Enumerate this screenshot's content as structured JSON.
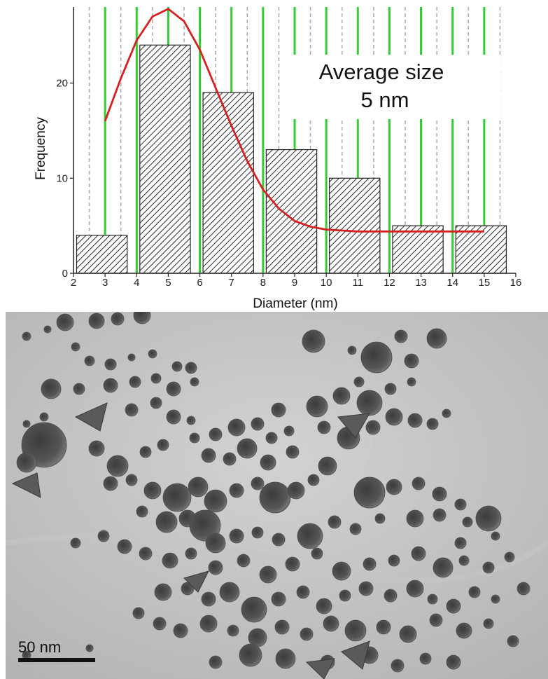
{
  "chart_data": {
    "type": "bar",
    "x_ticks": [
      2,
      3,
      4,
      5,
      6,
      7,
      8,
      9,
      10,
      11,
      12,
      13,
      14,
      15,
      16
    ],
    "y_ticks": [
      0,
      10,
      20
    ],
    "xlim": [
      2,
      16
    ],
    "ylim": [
      0,
      28
    ],
    "xlabel": "Diameter (nm)",
    "ylabel": "Frequency",
    "bars": [
      {
        "x_start": 2.1,
        "x_end": 3.7,
        "value": 4
      },
      {
        "x_start": 4.1,
        "x_end": 5.7,
        "value": 24
      },
      {
        "x_start": 6.1,
        "x_end": 7.7,
        "value": 19
      },
      {
        "x_start": 8.1,
        "x_end": 9.7,
        "value": 13
      },
      {
        "x_start": 10.1,
        "x_end": 11.7,
        "value": 10
      },
      {
        "x_start": 12.1,
        "x_end": 13.7,
        "value": 5
      },
      {
        "x_start": 14.1,
        "x_end": 15.7,
        "value": 5
      }
    ],
    "fit_curve": {
      "color": "#d42020",
      "x": [
        3,
        3.5,
        4,
        4.5,
        5,
        5.5,
        6,
        6.5,
        7,
        7.5,
        8,
        8.5,
        9,
        9.5,
        10,
        11,
        12,
        13,
        14,
        15
      ],
      "y": [
        16,
        20.5,
        24.5,
        27,
        27.8,
        26.5,
        23.5,
        19.5,
        15.5,
        11.8,
        8.8,
        6.8,
        5.5,
        4.9,
        4.6,
        4.4,
        4.4,
        4.4,
        4.4,
        4.4
      ]
    },
    "gridlines": {
      "dashed_gray_x": [
        2.5,
        3.5,
        4.5,
        5.5,
        6.5,
        7.5,
        8.5,
        9.5,
        10.5,
        11.5,
        12.5,
        13.5,
        14.5,
        15.5
      ],
      "solid_green_x": [
        3,
        4,
        5,
        6,
        7,
        8,
        9,
        10,
        11,
        12,
        13,
        14,
        15
      ],
      "green_color": "#33cc33",
      "gray_color": "#aaaaaa"
    },
    "annotation": {
      "line1": "Average size",
      "line2": "5 nm"
    },
    "bar_pattern": "diagonal-hatch"
  },
  "tem_image": {
    "scale_bar_label": "50  nm"
  }
}
